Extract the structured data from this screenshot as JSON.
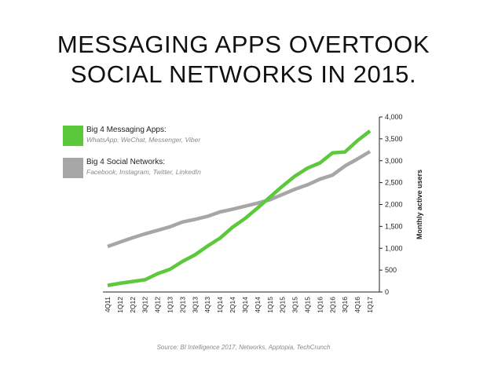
{
  "title_lines": [
    "MESSAGING APPS OVERTOOK",
    "SOCIAL NETWORKS IN 2015."
  ],
  "legend": [
    {
      "name": "Big 4 Messaging Apps:",
      "sub": "WhatsApp, WeChat, Messenger, Viber",
      "color": "#5cc83c"
    },
    {
      "name": "Big 4 Social Networks:",
      "sub": "Facebook, Instagram, Twitter, LinkedIn",
      "color": "#a6a6a6"
    }
  ],
  "source": "Source: BI Intelligence 2017, Networks, Apptopia, TechCrunch",
  "chart_data": {
    "type": "line",
    "title": "MESSAGING APPS OVERTOOK SOCIAL NETWORKS IN 2015.",
    "xlabel": "",
    "ylabel": "Monthly active users",
    "ylim": [
      0,
      4000
    ],
    "yticks": [
      "0",
      "500",
      "1,000",
      "1,500",
      "2,000",
      "2,500",
      "3,000",
      "3,500",
      "4,000"
    ],
    "grid": false,
    "categories": [
      "4Q11",
      "1Q12",
      "2Q12",
      "3Q12",
      "4Q12",
      "1Q13",
      "2Q13",
      "3Q13",
      "4Q13",
      "1Q14",
      "2Q14",
      "3Q14",
      "4Q14",
      "1Q15",
      "2Q15",
      "3Q15",
      "4Q15",
      "1Q16",
      "2Q16",
      "3Q16",
      "4Q16",
      "1Q17"
    ],
    "series": [
      {
        "name": "Big 4 Messaging Apps",
        "color": "#5cc83c",
        "values": [
          150,
          200,
          240,
          280,
          420,
          520,
          700,
          850,
          1050,
          1230,
          1480,
          1680,
          1920,
          2170,
          2420,
          2650,
          2830,
          2950,
          3180,
          3200,
          3460,
          3680
        ]
      },
      {
        "name": "Big 4 Social Networks",
        "color": "#a6a6a6",
        "values": [
          1040,
          1140,
          1240,
          1330,
          1410,
          1490,
          1600,
          1660,
          1730,
          1830,
          1890,
          1960,
          2030,
          2110,
          2230,
          2350,
          2450,
          2580,
          2670,
          2880,
          3040,
          3210
        ]
      }
    ]
  }
}
